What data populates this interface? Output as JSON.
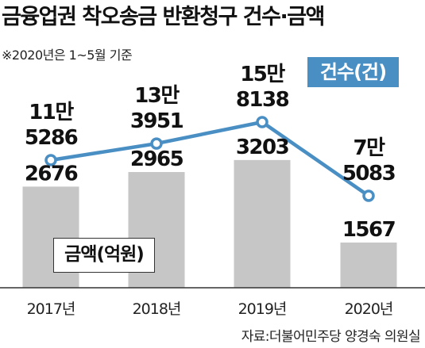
{
  "header": {
    "title": "금융업권 착오송금 반환청구 건수·금액",
    "note": "※2020년은 1~5월 기준",
    "source": "자료:더불어민주당 양경숙 의원실"
  },
  "legend": {
    "count_label": "건수(건)",
    "amount_label": "금액(억원)"
  },
  "colors": {
    "bar": "#c6c6c6",
    "line": "#4a8fc4",
    "marker_fill": "#ffffff"
  },
  "chart_data": {
    "type": "bar",
    "categories": [
      "2017년",
      "2018년",
      "2019년",
      "2020년"
    ],
    "series": [
      {
        "name": "금액(억원)",
        "type": "bar",
        "values": [
          2676,
          2965,
          3203,
          1567
        ],
        "labels": [
          "2676",
          "2965",
          "3203",
          "1567"
        ]
      },
      {
        "name": "건수(건)",
        "type": "line",
        "values": [
          115286,
          133951,
          158138,
          75083
        ],
        "labels": [
          [
            "11만",
            "5286"
          ],
          [
            "13만",
            "3951"
          ],
          [
            "15만",
            "8138"
          ],
          [
            "7만",
            "5083"
          ]
        ]
      }
    ],
    "title": "금융업권 착오송금 반환청구 건수·금액",
    "xlabel": "",
    "ylabel": "",
    "grid": false
  }
}
